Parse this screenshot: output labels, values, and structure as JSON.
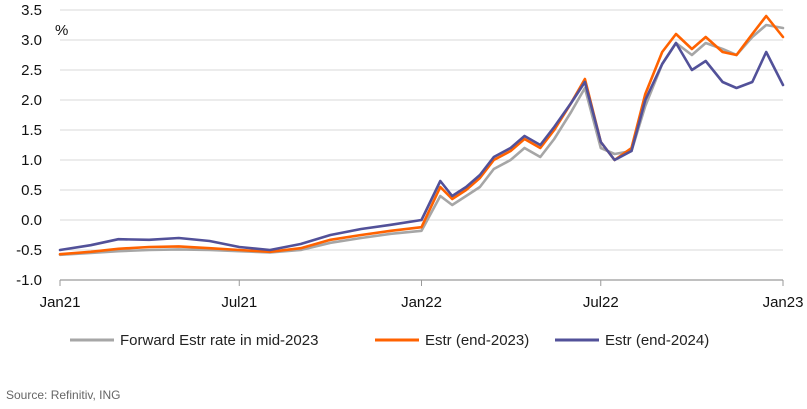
{
  "chart_data": {
    "type": "line",
    "title": "",
    "unit_label": "%",
    "ylim": [
      -1.0,
      3.5
    ],
    "yticks": [
      -1.0,
      -0.5,
      0.0,
      0.5,
      1.0,
      1.5,
      2.0,
      2.5,
      3.0,
      3.5
    ],
    "ytick_labels": [
      "-1.0",
      "-0.5",
      "0.0",
      "0.5",
      "1.0",
      "1.5",
      "2.0",
      "2.5",
      "3.0",
      "3.5"
    ],
    "xlim": [
      "2021-01-01",
      "2023-01-01"
    ],
    "xticks": [
      "2021-01-01",
      "2021-07-01",
      "2022-01-01",
      "2022-07-01",
      "2023-01-01"
    ],
    "xtick_labels": [
      "Jan21",
      "Jul21",
      "Jan22",
      "Jul22",
      "Jan23"
    ],
    "grid": "horizontal",
    "legend_position": "bottom",
    "x": [
      "2021-01-01",
      "2021-02-01",
      "2021-03-01",
      "2021-04-01",
      "2021-05-01",
      "2021-06-01",
      "2021-07-01",
      "2021-08-01",
      "2021-09-01",
      "2021-10-01",
      "2021-11-01",
      "2021-12-01",
      "2022-01-01",
      "2022-01-20",
      "2022-02-01",
      "2022-02-15",
      "2022-03-01",
      "2022-03-15",
      "2022-04-01",
      "2022-04-15",
      "2022-05-01",
      "2022-05-15",
      "2022-06-01",
      "2022-06-15",
      "2022-07-01",
      "2022-07-15",
      "2022-08-01",
      "2022-08-15",
      "2022-09-01",
      "2022-09-15",
      "2022-10-01",
      "2022-10-15",
      "2022-11-01",
      "2022-11-15",
      "2022-12-01",
      "2022-12-15",
      "2023-01-01"
    ],
    "series": [
      {
        "name": "Forward Estr rate in mid-2023",
        "color": "#a6a6a6",
        "values": [
          -0.58,
          -0.55,
          -0.52,
          -0.5,
          -0.49,
          -0.5,
          -0.52,
          -0.54,
          -0.5,
          -0.38,
          -0.3,
          -0.23,
          -0.18,
          0.4,
          0.25,
          0.4,
          0.55,
          0.85,
          1.0,
          1.2,
          1.05,
          1.35,
          1.8,
          2.2,
          1.2,
          1.1,
          1.15,
          1.9,
          2.6,
          2.95,
          2.75,
          2.95,
          2.85,
          2.75,
          3.05,
          3.25,
          3.2
        ]
      },
      {
        "name": "Estr (end-2023)",
        "color": "#ff6200",
        "values": [
          -0.57,
          -0.53,
          -0.48,
          -0.45,
          -0.44,
          -0.47,
          -0.5,
          -0.53,
          -0.47,
          -0.33,
          -0.25,
          -0.18,
          -0.12,
          0.55,
          0.35,
          0.5,
          0.7,
          1.0,
          1.15,
          1.35,
          1.2,
          1.5,
          1.95,
          2.35,
          1.3,
          1.0,
          1.2,
          2.1,
          2.8,
          3.1,
          2.85,
          3.05,
          2.8,
          2.75,
          3.1,
          3.4,
          3.05
        ]
      },
      {
        "name": "Estr (end-2024)",
        "color": "#525199",
        "values": [
          -0.5,
          -0.42,
          -0.32,
          -0.33,
          -0.3,
          -0.35,
          -0.45,
          -0.5,
          -0.4,
          -0.25,
          -0.15,
          -0.08,
          0.0,
          0.65,
          0.4,
          0.55,
          0.75,
          1.05,
          1.2,
          1.4,
          1.25,
          1.55,
          1.95,
          2.3,
          1.3,
          1.0,
          1.15,
          2.0,
          2.6,
          2.95,
          2.5,
          2.65,
          2.3,
          2.2,
          2.3,
          2.8,
          2.25
        ]
      }
    ]
  },
  "source": "Source: Refinitiv, ING"
}
